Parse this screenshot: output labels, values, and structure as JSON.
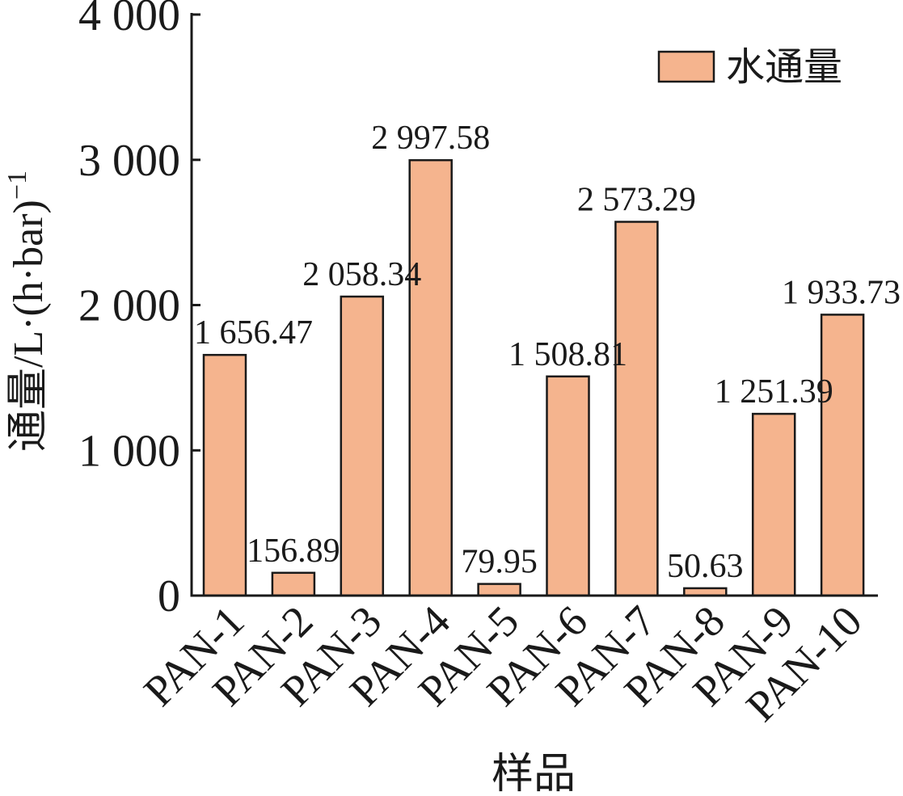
{
  "chart_data": {
    "type": "bar",
    "categories": [
      "PAN-1",
      "PAN-2",
      "PAN-3",
      "PAN-4",
      "PAN-5",
      "PAN-6",
      "PAN-7",
      "PAN-8",
      "PAN-9",
      "PAN-10"
    ],
    "series": [
      {
        "name": "水通量",
        "values": [
          1656.47,
          156.89,
          2058.34,
          2997.58,
          79.95,
          1508.81,
          2573.29,
          50.63,
          1251.39,
          1933.73
        ],
        "labels": [
          "1 656.47",
          "156.89",
          "2 058.34",
          "2 997.58",
          "79.95",
          "1 508.81",
          "2 573.29",
          "50.63",
          "1 251.39",
          "1 933.73"
        ],
        "color": "#F5B48E"
      }
    ],
    "xlabel": "样品",
    "ylabel": "通量/L·(h·bar)",
    "ylabel_superscript": "−1",
    "ylim": [
      0,
      4000
    ],
    "yticks": [
      0,
      1000,
      2000,
      3000,
      4000
    ],
    "ytick_labels": [
      "0",
      "1 000",
      "2 000",
      "3 000",
      "4 000"
    ],
    "grid": false,
    "legend_position": "top-right",
    "edge_color": "#1a1a1a"
  }
}
